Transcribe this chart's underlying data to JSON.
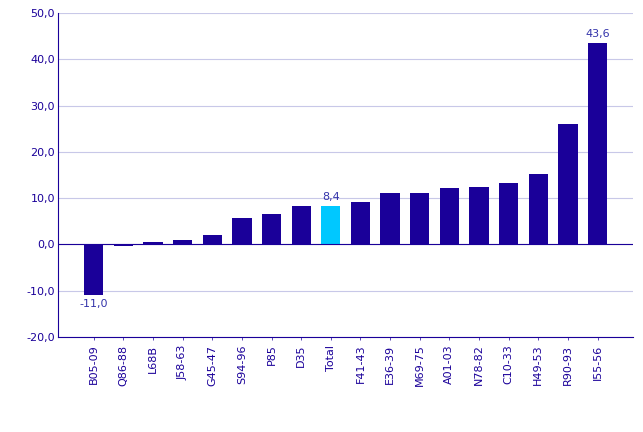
{
  "categories": [
    "B05-09",
    "Q86-88",
    "L68B",
    "J58-63",
    "G45-47",
    "S94-96",
    "P85",
    "D35",
    "Total",
    "F41-43",
    "E36-39",
    "M69-75",
    "A01-03",
    "N78-82",
    "C10-33",
    "H49-53",
    "R90-93",
    "I55-56"
  ],
  "values": [
    -11.0,
    -0.3,
    0.5,
    1.0,
    2.0,
    5.7,
    6.5,
    8.2,
    8.4,
    9.1,
    11.0,
    11.0,
    12.2,
    12.5,
    13.2,
    15.2,
    26.1,
    43.6
  ],
  "bar_colors": [
    "#1a0099",
    "#1a0099",
    "#1a0099",
    "#1a0099",
    "#1a0099",
    "#1a0099",
    "#1a0099",
    "#1a0099",
    "#00c8ff",
    "#1a0099",
    "#1a0099",
    "#1a0099",
    "#1a0099",
    "#1a0099",
    "#1a0099",
    "#1a0099",
    "#1a0099",
    "#1a0099"
  ],
  "label_bars": [
    {
      "cat": "B05-09",
      "label": "-11,0",
      "val": -11.0
    },
    {
      "cat": "Total",
      "label": "8,4",
      "val": 8.4
    },
    {
      "cat": "I55-56",
      "label": "43,6",
      "val": 43.6
    }
  ],
  "ylim": [
    -20,
    50
  ],
  "yticks": [
    -20,
    -10,
    0,
    10,
    20,
    30,
    40,
    50
  ],
  "grid_color": "#c8c8e8",
  "axis_color": "#1a0099",
  "text_color": "#3333aa",
  "background_color": "#ffffff",
  "bar_width": 0.65
}
